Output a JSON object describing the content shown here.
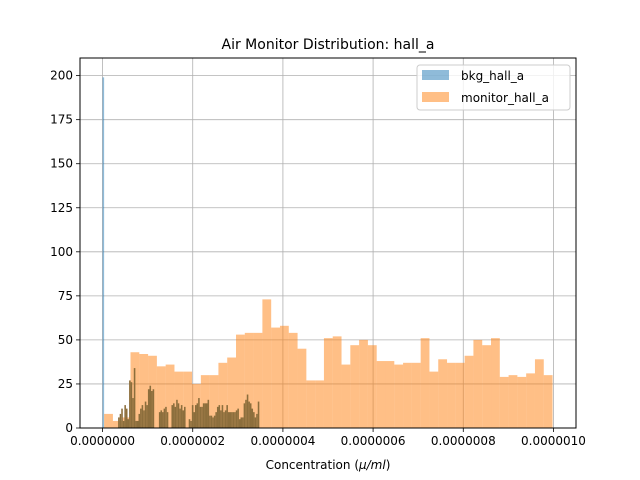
{
  "chart_data": {
    "type": "bar",
    "histogram": true,
    "title": "Air Monitor Distribution: hall_a",
    "xlabel": "Concentration ($\\mu/ml$)",
    "xlabel_plain": "Concentration (",
    "xlabel_math": "μ/ml",
    "xlabel_close": ")",
    "ylabel": "",
    "xlim": [
      -5e-08,
      1.05e-06
    ],
    "ylim": [
      0,
      210
    ],
    "xticks": [
      0,
      2e-07,
      4e-07,
      6e-07,
      8e-07,
      1e-06
    ],
    "xtick_labels": [
      "0.0000000",
      "0.0000002",
      "0.0000004",
      "0.0000006",
      "0.0000008",
      "0.0000010"
    ],
    "yticks": [
      0,
      25,
      50,
      75,
      100,
      125,
      150,
      175,
      200
    ],
    "ytick_labels": [
      "0",
      "25",
      "50",
      "75",
      "100",
      "125",
      "150",
      "175",
      "200"
    ],
    "grid": true,
    "legend_position": "top-right",
    "series": [
      {
        "name": "bkg_hall_a",
        "color": "#1f77b4",
        "alpha": 0.5,
        "bin_start": 0,
        "bin_width": 3.48e-09,
        "values": [
          199,
          0,
          0,
          0,
          0,
          0,
          0,
          0,
          0,
          0,
          0,
          0,
          0,
          0,
          0,
          0,
          0,
          0,
          0,
          0,
          0,
          0,
          0,
          0,
          0,
          0,
          0,
          0,
          0,
          0,
          0,
          0,
          0,
          0,
          0,
          0,
          0,
          0,
          0,
          0,
          0,
          0,
          0,
          0,
          0,
          0,
          0,
          0,
          0,
          0,
          0,
          0,
          0,
          0,
          0,
          0,
          0,
          0,
          0,
          0,
          0,
          0,
          0,
          0,
          0,
          0,
          0,
          0,
          0,
          0,
          0,
          0,
          0,
          0,
          0,
          0,
          0,
          0,
          0,
          0,
          0,
          0,
          0,
          0,
          0,
          0,
          0,
          0,
          0,
          0,
          0,
          0,
          0,
          0,
          0,
          0,
          0,
          0,
          0,
          0
        ]
      },
      {
        "name": "monitor_hall_a",
        "color": "#ff7f0e",
        "alpha": 0.5,
        "bin_start": 3.5e-09,
        "bin_width": 1.95e-08,
        "values": [
          8,
          4,
          6,
          43,
          42,
          41,
          35,
          36,
          32,
          32,
          25,
          30,
          30,
          37,
          40,
          53,
          54,
          54,
          73,
          57,
          58,
          54,
          45,
          27,
          27,
          51,
          52,
          36,
          47,
          50,
          47,
          38,
          38,
          36,
          37,
          37,
          51,
          32,
          39,
          37,
          37,
          41,
          50,
          47,
          51,
          29,
          30,
          29,
          31,
          39,
          30
        ]
      },
      {
        "name": "",
        "color": "#8c6e3c",
        "alpha": 1,
        "bin_start": 3.45e-08,
        "bin_width": 3.48e-09,
        "values": [
          6,
          8,
          11,
          4,
          13,
          11,
          5,
          27,
          26,
          17,
          34,
          4,
          4,
          8,
          11,
          13,
          10,
          15,
          13,
          22,
          24,
          21,
          22,
          0,
          0,
          0,
          9,
          10,
          9,
          11,
          12,
          9,
          0,
          0,
          13,
          14,
          12,
          16,
          14,
          11,
          13,
          10,
          12,
          0,
          0,
          5,
          4,
          13,
          9,
          13,
          14,
          17,
          12,
          12,
          14,
          14,
          14,
          16,
          7,
          7,
          6,
          7,
          9,
          12,
          13,
          10,
          13,
          9,
          10,
          13,
          9,
          9,
          9,
          9,
          9,
          10,
          11,
          5,
          6,
          6,
          14,
          16,
          19,
          15,
          14,
          11,
          9,
          6,
          8,
          15,
          0,
          0,
          0,
          0,
          0,
          0,
          0,
          0,
          0,
          0
        ]
      }
    ]
  }
}
